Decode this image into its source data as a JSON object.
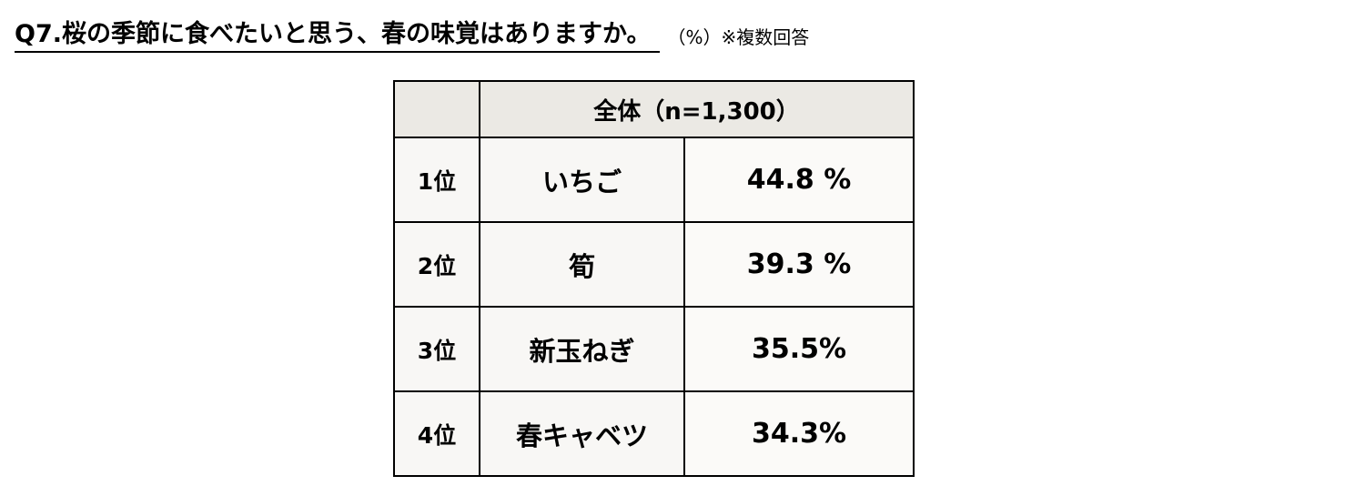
{
  "title": {
    "question": "Q7.桜の季節に食べたいと思う、春の味覚はありますか。",
    "note": "（%）※複数回答"
  },
  "table": {
    "header": {
      "corner": "",
      "label": "全体（n=1,300）"
    },
    "rows": [
      {
        "rank": "1位",
        "item": "いちご",
        "value": "44.8 %"
      },
      {
        "rank": "2位",
        "item": "筍",
        "value": "39.3 %"
      },
      {
        "rank": "3位",
        "item": "新玉ねぎ",
        "value": "35.5%"
      },
      {
        "rank": "4位",
        "item": "春キャベツ",
        "value": "34.3%"
      }
    ]
  },
  "colors": {
    "header_bg": "#ebe9e4",
    "cell_bg": "#f8f7f5",
    "border": "#000000"
  }
}
